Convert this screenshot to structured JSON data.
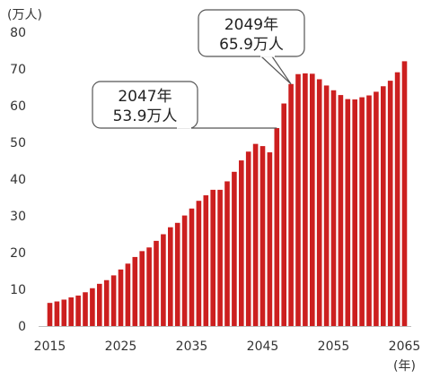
{
  "chart_data": {
    "type": "bar",
    "y_unit_label": "(万人)",
    "x_unit_label": "(年)",
    "ylim": [
      0,
      80
    ],
    "y_ticks": [
      0,
      10,
      20,
      30,
      40,
      50,
      60,
      70,
      80
    ],
    "x_tick_labels": [
      "2015",
      "2025",
      "2035",
      "2045",
      "2055",
      "2065"
    ],
    "grid": false,
    "bar_color": "#cc1f1f",
    "x": [
      2015,
      2016,
      2017,
      2018,
      2019,
      2020,
      2021,
      2022,
      2023,
      2024,
      2025,
      2026,
      2027,
      2028,
      2029,
      2030,
      2031,
      2032,
      2033,
      2034,
      2035,
      2036,
      2037,
      2038,
      2039,
      2040,
      2041,
      2042,
      2043,
      2044,
      2045,
      2046,
      2047,
      2048,
      2049,
      2050,
      2051,
      2052,
      2053,
      2054,
      2055,
      2056,
      2057,
      2058,
      2059,
      2060,
      2061,
      2062,
      2063,
      2064,
      2065
    ],
    "values": [
      6.3,
      6.7,
      7.2,
      7.8,
      8.3,
      9.2,
      10.3,
      11.5,
      12.5,
      13.8,
      15.4,
      17.0,
      18.8,
      20.4,
      21.4,
      23.2,
      25.0,
      26.9,
      28.1,
      30.1,
      32.0,
      34.1,
      35.6,
      37.1,
      37.1,
      39.4,
      42.0,
      45.1,
      47.5,
      49.6,
      49.0,
      47.3,
      53.9,
      60.6,
      65.9,
      68.6,
      68.8,
      68.7,
      67.2,
      65.5,
      64.2,
      62.9,
      61.8,
      61.7,
      62.3,
      62.8,
      63.8,
      65.3,
      66.8,
      69.1,
      72.1
    ],
    "annotations": [
      {
        "year": 2047,
        "value": 53.9,
        "line1": "2047年",
        "line2": "53.9万人"
      },
      {
        "year": 2049,
        "value": 65.9,
        "line1": "2049年",
        "line2": "65.9万人"
      }
    ]
  }
}
